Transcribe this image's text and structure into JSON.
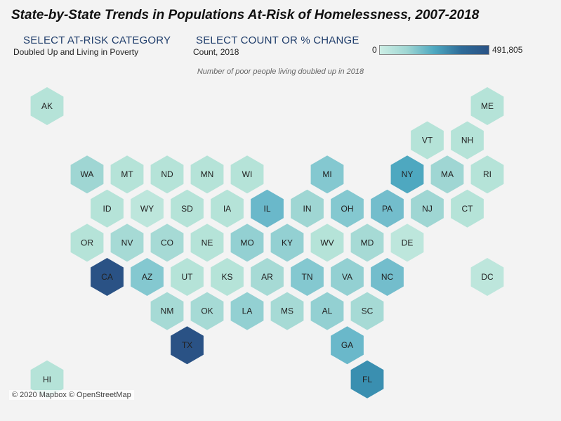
{
  "title": "State-by-State Trends in Populations At-Risk of Homelessness, 2007-2018",
  "controls": {
    "category": {
      "heading": "SELECT AT-RISK CATEGORY",
      "value": "Doubled Up and Living in Poverty"
    },
    "measure": {
      "heading": "SELECT COUNT OR % CHANGE",
      "value": "Count, 2018"
    }
  },
  "legend": {
    "min_label": "0",
    "max_label": "491,805",
    "color_low": "#cdeee5",
    "color_high": "#2a5285"
  },
  "subtitle": "Number of poor people living doubled up in 2018",
  "attribution": "© 2020 Mapbox © OpenStreetMap",
  "map_data": {
    "states": [
      {
        "code": "AK",
        "col": 0,
        "row": 0,
        "color": "#b5e3d8"
      },
      {
        "code": "ME",
        "col": 11,
        "row": 0,
        "color": "#b5e3d8"
      },
      {
        "code": "VT",
        "col": 9.5,
        "row": 1,
        "color": "#b5e3d8"
      },
      {
        "code": "NH",
        "col": 10.5,
        "row": 1,
        "color": "#b5e3d8"
      },
      {
        "code": "WA",
        "col": 1,
        "row": 2,
        "color": "#9fd6d3"
      },
      {
        "code": "MT",
        "col": 2,
        "row": 2,
        "color": "#b5e3d8"
      },
      {
        "code": "ND",
        "col": 3,
        "row": 2,
        "color": "#b5e3d8"
      },
      {
        "code": "MN",
        "col": 4,
        "row": 2,
        "color": "#b5e3d8"
      },
      {
        "code": "WI",
        "col": 5,
        "row": 2,
        "color": "#b5e3d8"
      },
      {
        "code": "MI",
        "col": 7,
        "row": 2,
        "color": "#84c8d0"
      },
      {
        "code": "NY",
        "col": 9,
        "row": 2,
        "color": "#4ea8c0"
      },
      {
        "code": "MA",
        "col": 10,
        "row": 2,
        "color": "#9fd6d3"
      },
      {
        "code": "RI",
        "col": 11,
        "row": 2,
        "color": "#b5e3d8"
      },
      {
        "code": "ID",
        "col": 1.5,
        "row": 3,
        "color": "#b5e3d8"
      },
      {
        "code": "WY",
        "col": 2.5,
        "row": 3,
        "color": "#bde6dc"
      },
      {
        "code": "SD",
        "col": 3.5,
        "row": 3,
        "color": "#b5e3d8"
      },
      {
        "code": "IA",
        "col": 4.5,
        "row": 3,
        "color": "#b5e3d8"
      },
      {
        "code": "IL",
        "col": 5.5,
        "row": 3,
        "color": "#6ab8ca"
      },
      {
        "code": "IN",
        "col": 6.5,
        "row": 3,
        "color": "#9fd6d3"
      },
      {
        "code": "OH",
        "col": 7.5,
        "row": 3,
        "color": "#84c8d0"
      },
      {
        "code": "PA",
        "col": 8.5,
        "row": 3,
        "color": "#73bdcc"
      },
      {
        "code": "NJ",
        "col": 9.5,
        "row": 3,
        "color": "#9fd6d3"
      },
      {
        "code": "CT",
        "col": 10.5,
        "row": 3,
        "color": "#b5e3d8"
      },
      {
        "code": "OR",
        "col": 1,
        "row": 4,
        "color": "#b5e3d8"
      },
      {
        "code": "NV",
        "col": 2,
        "row": 4,
        "color": "#a6dad5"
      },
      {
        "code": "CO",
        "col": 3,
        "row": 4,
        "color": "#a6dad5"
      },
      {
        "code": "NE",
        "col": 4,
        "row": 4,
        "color": "#b5e3d8"
      },
      {
        "code": "MO",
        "col": 5,
        "row": 4,
        "color": "#93d0d2"
      },
      {
        "code": "KY",
        "col": 6,
        "row": 4,
        "color": "#93d0d2"
      },
      {
        "code": "WV",
        "col": 7,
        "row": 4,
        "color": "#b5e3d8"
      },
      {
        "code": "MD",
        "col": 8,
        "row": 4,
        "color": "#a6dad5"
      },
      {
        "code": "DE",
        "col": 9,
        "row": 4,
        "color": "#bde6dc"
      },
      {
        "code": "CA",
        "col": 1.5,
        "row": 5,
        "color": "#2a5285"
      },
      {
        "code": "AZ",
        "col": 2.5,
        "row": 5,
        "color": "#84c8d0"
      },
      {
        "code": "UT",
        "col": 3.5,
        "row": 5,
        "color": "#b5e3d8"
      },
      {
        "code": "KS",
        "col": 4.5,
        "row": 5,
        "color": "#b5e3d8"
      },
      {
        "code": "AR",
        "col": 5.5,
        "row": 5,
        "color": "#a6dad5"
      },
      {
        "code": "TN",
        "col": 6.5,
        "row": 5,
        "color": "#84c8d0"
      },
      {
        "code": "VA",
        "col": 7.5,
        "row": 5,
        "color": "#93d0d2"
      },
      {
        "code": "NC",
        "col": 8.5,
        "row": 5,
        "color": "#73bdcc"
      },
      {
        "code": "DC",
        "col": 11,
        "row": 5,
        "color": "#bde6dc"
      },
      {
        "code": "NM",
        "col": 3,
        "row": 6,
        "color": "#a6dad5"
      },
      {
        "code": "OK",
        "col": 4,
        "row": 6,
        "color": "#a6dad5"
      },
      {
        "code": "LA",
        "col": 5,
        "row": 6,
        "color": "#93d0d2"
      },
      {
        "code": "MS",
        "col": 6,
        "row": 6,
        "color": "#a6dad5"
      },
      {
        "code": "AL",
        "col": 7,
        "row": 6,
        "color": "#93d0d2"
      },
      {
        "code": "SC",
        "col": 8,
        "row": 6,
        "color": "#a6dad5"
      },
      {
        "code": "TX",
        "col": 3.5,
        "row": 7,
        "color": "#2a5285"
      },
      {
        "code": "GA",
        "col": 7.5,
        "row": 7,
        "color": "#6ab8ca"
      },
      {
        "code": "HI",
        "col": 0,
        "row": 8,
        "color": "#b5e3d8"
      },
      {
        "code": "FL",
        "col": 8,
        "row": 8,
        "color": "#3a8fb0"
      }
    ]
  }
}
